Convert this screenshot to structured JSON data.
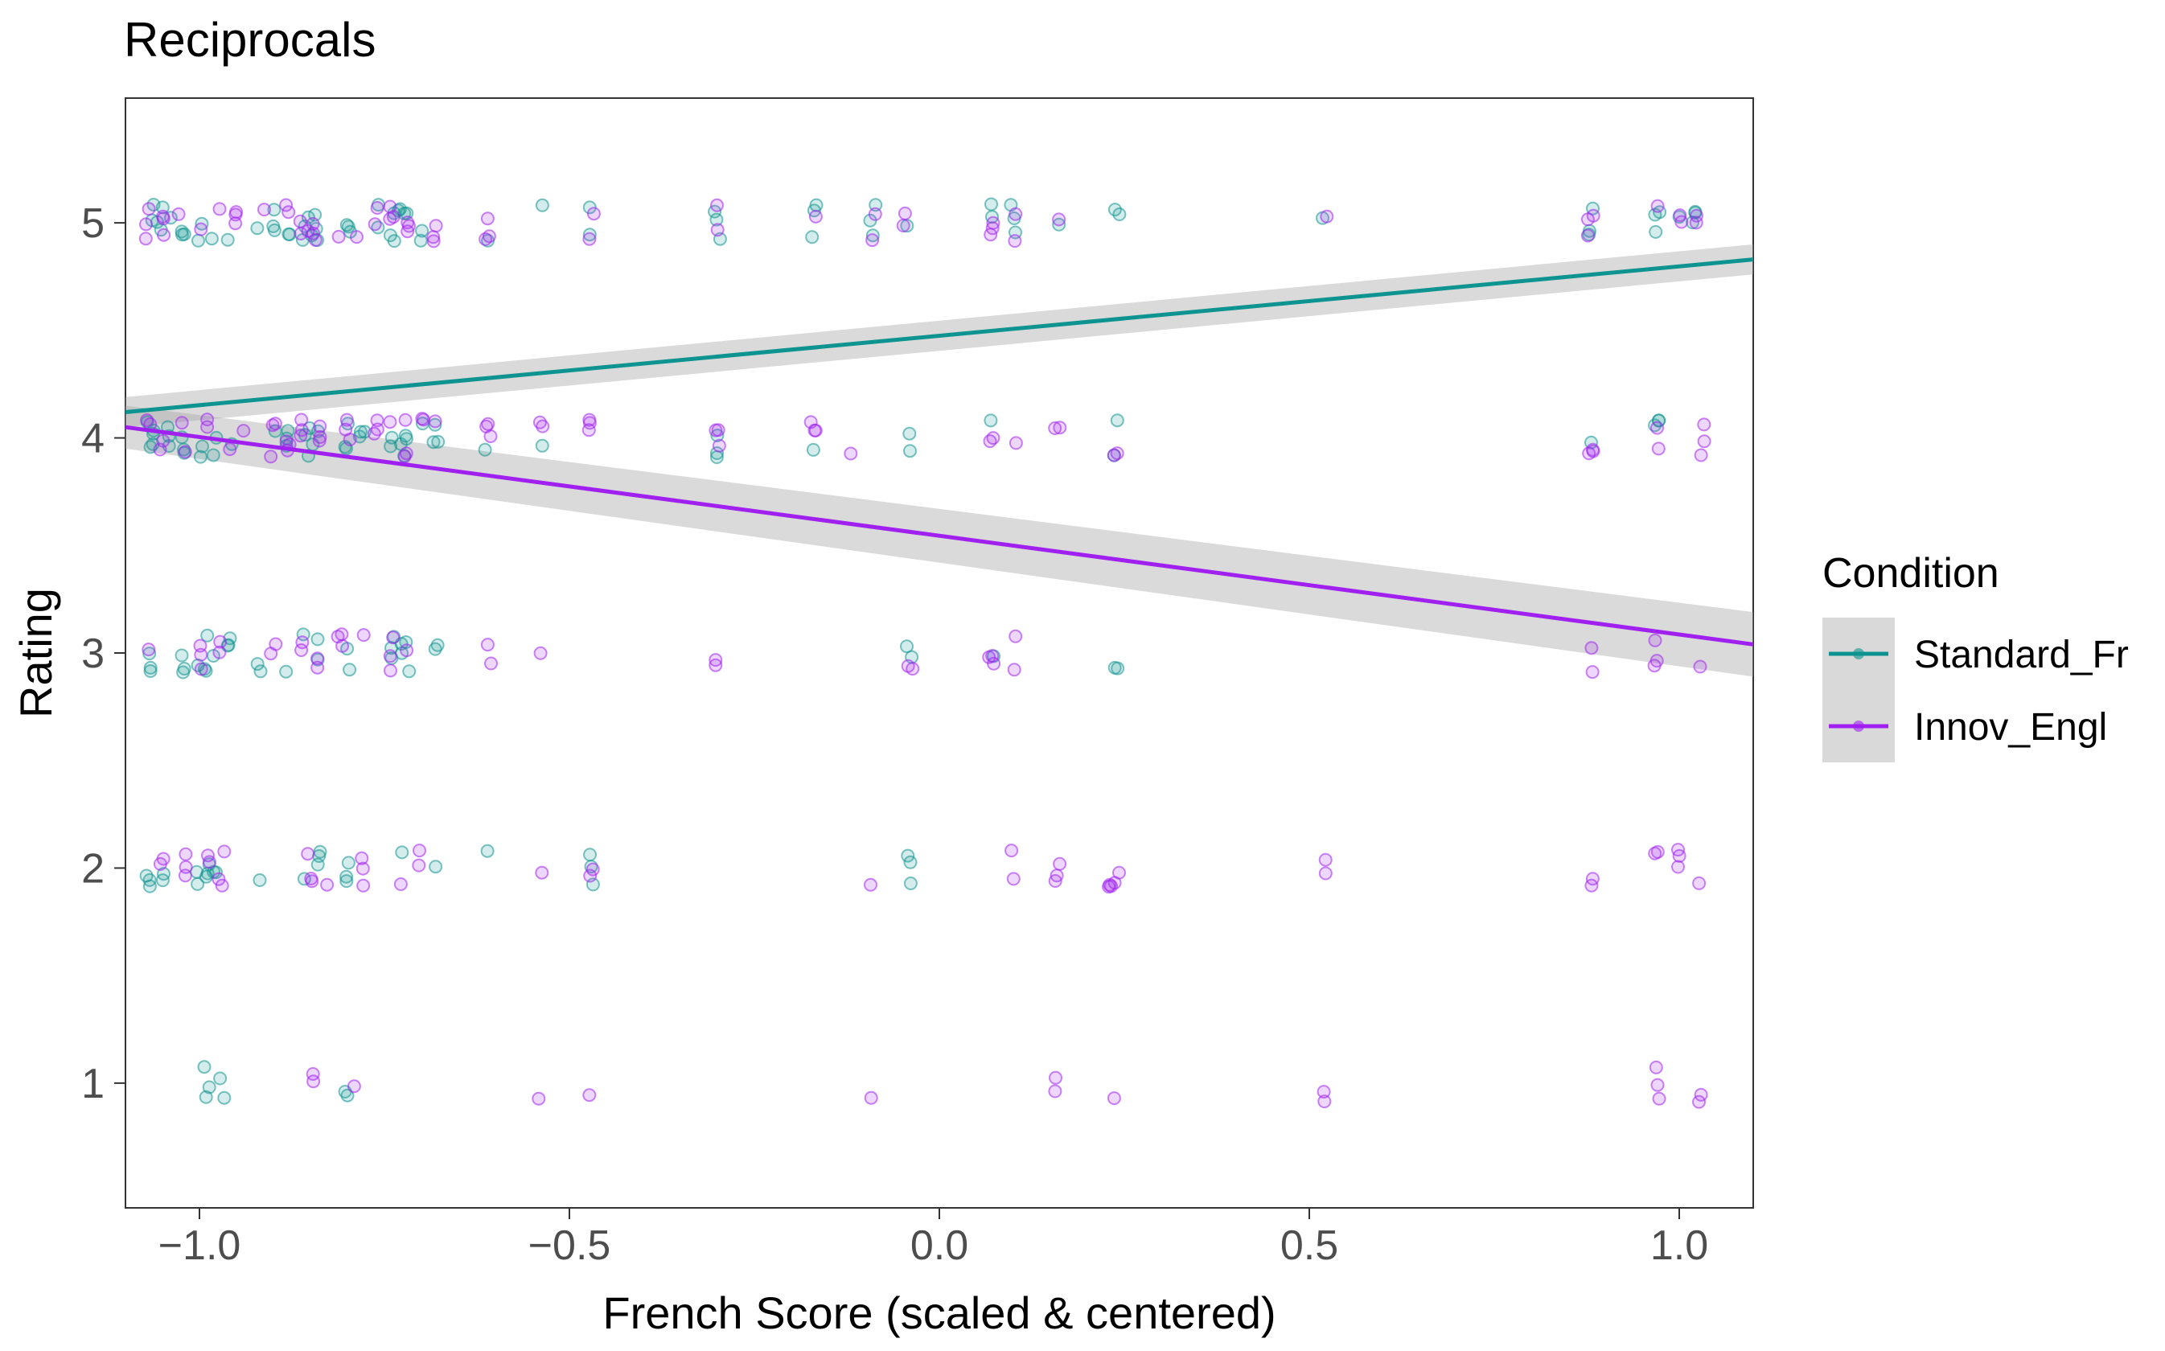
{
  "chart_data": {
    "type": "scatter",
    "title": "Reciprocals",
    "xlabel": "French Score (scaled & centered)",
    "ylabel": "Rating",
    "xlim": [
      -1.1,
      1.1
    ],
    "ylim": [
      0.42,
      5.58
    ],
    "x_ticks": [
      -1.0,
      -0.5,
      0.0,
      0.5,
      1.0
    ],
    "x_tick_labels": [
      "−1.0",
      "−0.5",
      "0.0",
      "0.5",
      "1.0"
    ],
    "y_ticks": [
      1,
      2,
      3,
      4,
      5
    ],
    "y_tick_labels": [
      "1",
      "2",
      "3",
      "4",
      "5"
    ],
    "grid": false,
    "jitter": true,
    "legend": {
      "title": "Condition",
      "position": "right"
    },
    "series": [
      {
        "name": "Standard_Fr",
        "color": "#0e9490",
        "fit_line": {
          "x": [
            -1.1,
            1.1
          ],
          "y": [
            4.12,
            4.83
          ]
        },
        "ci_band": {
          "x": [
            -1.1,
            1.1
          ],
          "lower": [
            4.05,
            4.76
          ],
          "upper": [
            4.19,
            4.9
          ]
        },
        "points": {
          "5": [
            -1.06,
            -1.05,
            -1.04,
            -1.02,
            -1.0,
            -0.98,
            -0.96,
            -0.92,
            -0.9,
            -0.88,
            -0.86,
            -0.85,
            -0.84,
            -0.8,
            -0.76,
            -0.74,
            -0.73,
            -0.72,
            -0.7,
            -0.61,
            -0.54,
            -0.47,
            -0.3,
            -0.17,
            -0.09,
            -0.04,
            0.07,
            0.1,
            0.16,
            0.24,
            0.52,
            0.88,
            0.97,
            1.0,
            1.02
          ],
          "4": [
            -1.07,
            -1.06,
            -1.04,
            -1.02,
            -1.0,
            -0.98,
            -0.96,
            -0.9,
            -0.88,
            -0.86,
            -0.85,
            -0.84,
            -0.8,
            -0.78,
            -0.74,
            -0.73,
            -0.72,
            -0.7,
            -0.68,
            -0.61,
            -0.54,
            -0.3,
            -0.17,
            -0.04,
            0.07,
            0.24,
            0.88,
            0.97
          ],
          "3": [
            -1.07,
            -1.02,
            -1.0,
            -0.99,
            -0.98,
            -0.96,
            -0.92,
            -0.88,
            -0.86,
            -0.84,
            -0.8,
            -0.74,
            -0.73,
            -0.72,
            -0.68,
            -0.04,
            0.07,
            0.24
          ],
          "2": [
            -1.07,
            -1.05,
            -1.0,
            -0.99,
            -0.98,
            -0.92,
            -0.86,
            -0.84,
            -0.8,
            -0.73,
            -0.68,
            -0.61,
            -0.47,
            -0.04
          ],
          "1": [
            -0.99,
            -0.97,
            -0.8
          ]
        }
      },
      {
        "name": "Innov_Engl",
        "color": "#a020f0",
        "fit_line": {
          "x": [
            -1.1,
            1.1
          ],
          "y": [
            4.05,
            3.04
          ]
        },
        "ci_band": {
          "x": [
            -1.1,
            1.1
          ],
          "lower": [
            3.95,
            2.89
          ],
          "upper": [
            4.15,
            3.19
          ]
        },
        "points": {
          "5": [
            -1.07,
            -1.05,
            -1.03,
            -1.0,
            -0.97,
            -0.95,
            -0.91,
            -0.88,
            -0.86,
            -0.85,
            -0.84,
            -0.81,
            -0.79,
            -0.76,
            -0.74,
            -0.72,
            -0.68,
            -0.61,
            -0.47,
            -0.3,
            -0.17,
            -0.09,
            -0.05,
            0.07,
            0.1,
            0.16,
            0.52,
            0.88,
            0.97,
            1.0,
            1.02
          ],
          "4": [
            -1.07,
            -1.05,
            -1.02,
            -0.99,
            -0.96,
            -0.94,
            -0.9,
            -0.88,
            -0.86,
            -0.84,
            -0.8,
            -0.76,
            -0.74,
            -0.72,
            -0.7,
            -0.68,
            -0.61,
            -0.54,
            -0.47,
            -0.3,
            -0.17,
            -0.12,
            0.07,
            0.1,
            0.16,
            0.24,
            0.88,
            0.97,
            1.03
          ],
          "3": [
            -1.07,
            -1.0,
            -0.97,
            -0.9,
            -0.86,
            -0.84,
            -0.81,
            -0.78,
            -0.74,
            -0.72,
            -0.61,
            -0.54,
            -0.3,
            -0.04,
            0.07,
            0.1,
            0.88,
            0.97,
            1.03
          ],
          "2": [
            -1.05,
            -1.02,
            -0.99,
            -0.97,
            -0.85,
            -0.83,
            -0.78,
            -0.73,
            -0.7,
            -0.54,
            -0.47,
            -0.09,
            0.1,
            0.16,
            0.23,
            0.24,
            0.52,
            0.88,
            0.97,
            1.0,
            1.03
          ],
          "1": [
            -0.85,
            -0.79,
            -0.54,
            -0.47,
            -0.09,
            0.16,
            0.24,
            0.52,
            0.97,
            1.03
          ]
        }
      }
    ]
  }
}
